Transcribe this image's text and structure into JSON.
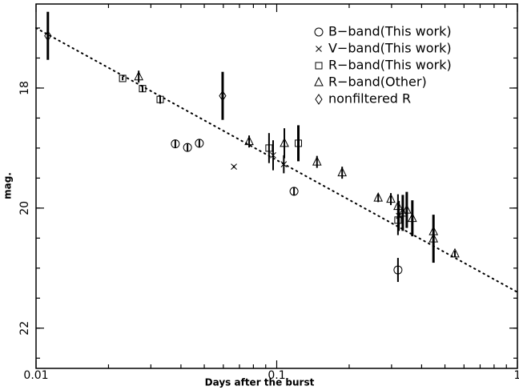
{
  "chart_data": {
    "type": "scatter",
    "xscale": "log",
    "y_inverted": true,
    "xlabel": "Days after the burst",
    "ylabel": "mag.",
    "xlim": [
      0.01,
      1
    ],
    "xticks": [
      0.01,
      0.1,
      1
    ],
    "ylim": [
      16.6,
      22.67
    ],
    "yticks": [
      18,
      20,
      22
    ],
    "legend": "top-right",
    "series": [
      {
        "name": "B−band(This work)",
        "marker": "circle",
        "color": "#000000",
        "x": [
          0.0379,
          0.0426,
          0.0477,
          0.118,
          0.319
        ],
        "values": [
          18.93,
          18.99,
          18.92,
          19.72,
          21.03
        ],
        "errors": [
          0.07,
          0.07,
          0.07,
          0.07,
          0.2
        ]
      },
      {
        "name": "V−band(This work)",
        "marker": "cross",
        "color": "#000000",
        "x": [
          0.0664,
          0.0966,
          0.107,
          0.322
        ],
        "values": [
          19.31,
          19.12,
          19.27,
          20.13
        ],
        "errors": [
          0.02,
          0.25,
          0.15,
          0.25
        ]
      },
      {
        "name": "R−band(This work)",
        "marker": "square",
        "color": "#000000",
        "x": [
          0.0229,
          0.0277,
          0.0328,
          0.0929,
          0.123,
          0.319
        ],
        "values": [
          17.84,
          18.01,
          18.19,
          19.0,
          18.92,
          20.2
        ],
        "errors": [
          0.03,
          0.05,
          0.07,
          0.25,
          0.3,
          0.25
        ]
      },
      {
        "name": "R−band(Other)",
        "marker": "triangle",
        "color": "#000000",
        "x": [
          0.0267,
          0.0768,
          0.1076,
          0.147,
          0.187,
          0.264,
          0.298,
          0.319,
          0.334,
          0.347,
          0.366,
          0.448,
          0.448,
          0.55
        ],
        "values": [
          17.81,
          18.89,
          18.92,
          19.23,
          19.41,
          19.83,
          19.85,
          19.97,
          20.08,
          20.03,
          20.17,
          20.39,
          20.51,
          20.76
        ],
        "errors": [
          0.1,
          0.1,
          0.25,
          0.1,
          0.1,
          0.07,
          0.1,
          0.2,
          0.3,
          0.3,
          0.3,
          0.1,
          0.4,
          0.05
        ]
      },
      {
        "name": "nonfiltered R",
        "marker": "diamond",
        "color": "#000000",
        "x": [
          0.0112,
          0.0596
        ],
        "values": [
          17.13,
          18.13
        ],
        "errors": [
          0.4,
          0.4
        ]
      }
    ],
    "model_line": {
      "x": [
        0.01,
        1
      ],
      "values": [
        17.0,
        21.4
      ]
    }
  }
}
